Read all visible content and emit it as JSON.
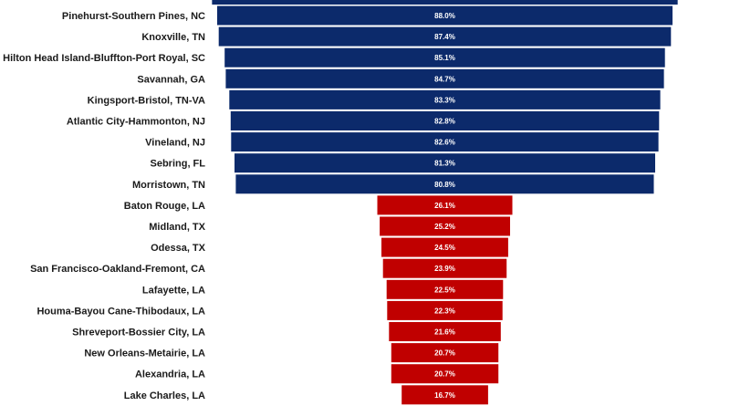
{
  "chart_data": {
    "type": "bar",
    "orientation": "horizontal-centered",
    "categories": [
      "Pinehurst-Southern Pines, NC",
      "Knoxville, TN",
      "Hilton Head Island-Bluffton-Port Royal, SC",
      "Savannah, GA",
      "Kingsport-Bristol, TN-VA",
      "Atlantic City-Hammonton, NJ",
      "Vineland, NJ",
      "Sebring, FL",
      "Morristown, TN",
      "Baton Rouge, LA",
      "Midland, TX",
      "Odessa, TX",
      "San Francisco-Oakland-Fremont, CA",
      "Lafayette, LA",
      "Houma-Bayou Cane-Thibodaux, LA",
      "Shreveport-Bossier City, LA",
      "New Orleans-Metairie, LA",
      "Alexandria, LA",
      "Lake Charles, LA"
    ],
    "values": [
      88.0,
      87.4,
      85.1,
      84.7,
      83.3,
      82.8,
      82.6,
      81.3,
      80.8,
      26.1,
      25.2,
      24.5,
      23.9,
      22.5,
      22.3,
      21.6,
      20.7,
      20.7,
      16.7
    ],
    "value_labels": [
      "88.0%",
      "87.4%",
      "85.1%",
      "84.7%",
      "83.3%",
      "82.8%",
      "82.6%",
      "81.3%",
      "80.8%",
      "26.1%",
      "25.2%",
      "24.5%",
      "23.9%",
      "22.5%",
      "22.3%",
      "21.6%",
      "20.7%",
      "20.7%",
      "16.7%"
    ],
    "groups": [
      "top",
      "top",
      "top",
      "top",
      "top",
      "top",
      "top",
      "top",
      "top",
      "bottom",
      "bottom",
      "bottom",
      "bottom",
      "bottom",
      "bottom",
      "bottom",
      "bottom",
      "bottom",
      "bottom"
    ],
    "colors": {
      "top": "#0c2a6b",
      "bottom": "#c00000"
    },
    "grid": false,
    "legend": "none"
  }
}
